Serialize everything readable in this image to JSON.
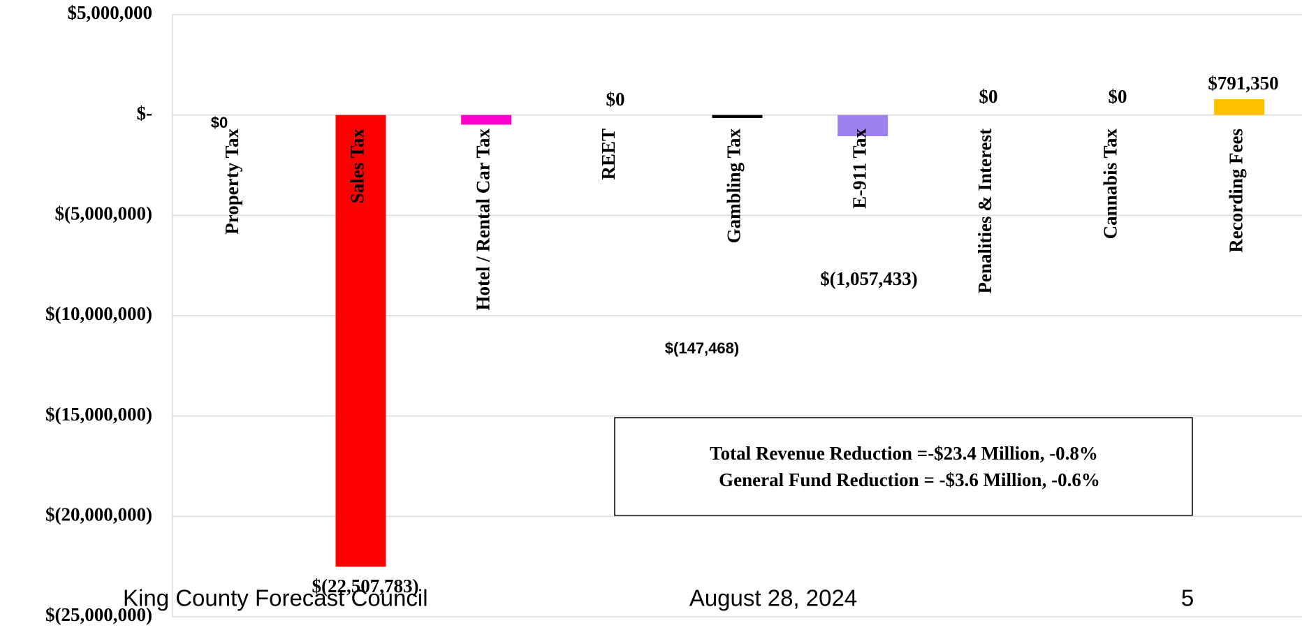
{
  "chart_data": {
    "type": "bar",
    "categories": [
      "Property Tax",
      "Sales Tax",
      "Hotel / Rental Car Tax",
      "REET",
      "Gambling Tax",
      "E-911 Tax",
      "Penalities & Interest",
      "Cannabis Tax",
      "Recording Fees"
    ],
    "values": [
      0,
      -22507783,
      -480000,
      0,
      -147468,
      -1057433,
      0,
      0,
      791350
    ],
    "value_labels": [
      "$0",
      "$(22,507,783)",
      null,
      "$0",
      "$(147,468)",
      "$(1,057,433)",
      "$0",
      "$0",
      "$791,350"
    ],
    "colors": [
      "#ffffff",
      "#ff0000",
      "#ff00cc",
      "#ffffff",
      "#000000",
      "#9f80ef",
      "#ffffff",
      "#ffffff",
      "#ffc000"
    ],
    "ylim": [
      -25000000,
      5000000
    ],
    "yticks": [
      {
        "value": 5000000,
        "label": "$5,000,000"
      },
      {
        "value": 0,
        "label": "$-"
      },
      {
        "value": -5000000,
        "label": "$(5,000,000)"
      },
      {
        "value": -10000000,
        "label": "$(10,000,000)"
      },
      {
        "value": -15000000,
        "label": "$(15,000,000)"
      },
      {
        "value": -20000000,
        "label": "$(20,000,000)"
      },
      {
        "value": -25000000,
        "label": "$(25,000,000)"
      }
    ],
    "grid": true,
    "annotations": [
      "Total Revenue Reduction =-$23.4 Million, -0.8%",
      "General Fund Reduction = -$3.6 Million, -0.6%"
    ]
  },
  "footer": {
    "left": "King County Forecast Council",
    "center": "August 28, 2024",
    "right": "5"
  }
}
